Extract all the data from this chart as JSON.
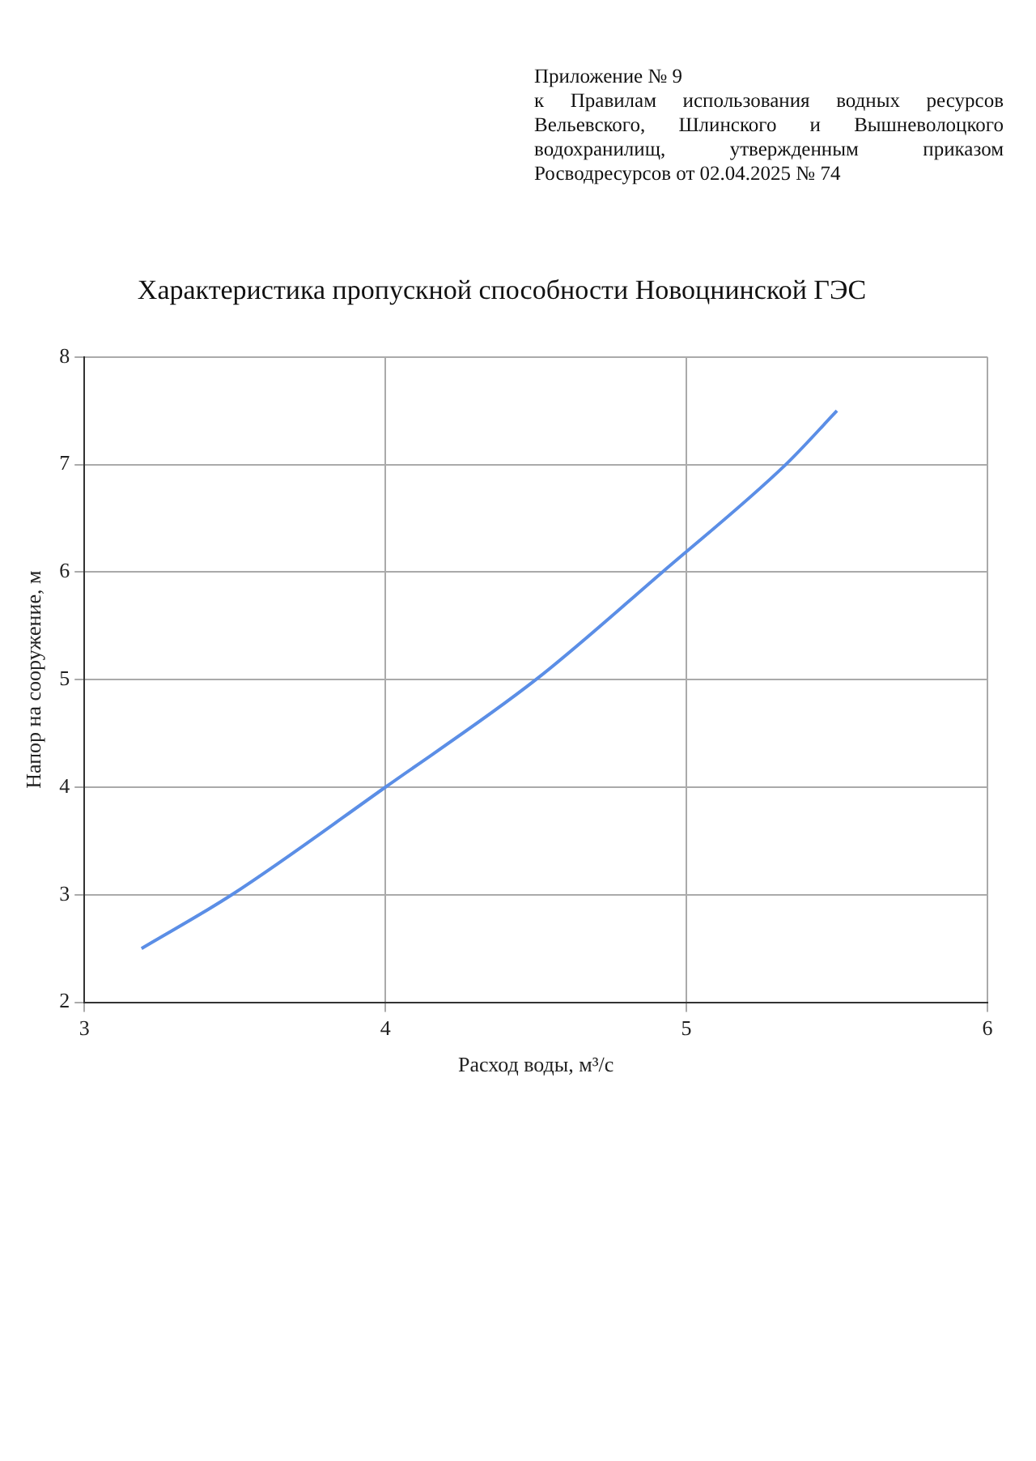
{
  "chart_data": {
    "type": "line",
    "title": "Характеристика пропускной способности Новоцнинской ГЭС",
    "xlabel": "Расход воды, м³/с",
    "ylabel": "Напор на сооружение, м",
    "annotations": [
      "Приложение № 9",
      "к Правилам использования водных ресурсов Вельевского, Шлинского и Вышневолоцкого водохранилищ, утвержденным приказом Росводресурсов от 02.04.2025 № 74"
    ],
    "x": [
      3.19,
      3.49,
      4,
      4.5,
      4.92,
      5.33,
      5.5
    ],
    "series": [
      {
        "color": "#5b8ee6",
        "values": [
          2.5,
          3,
          4,
          5,
          6,
          7,
          7.5
        ]
      }
    ],
    "xlim": [
      3,
      6
    ],
    "xticks": [
      3,
      4,
      5,
      6
    ],
    "ylim": [
      2,
      8
    ],
    "yticks": [
      2,
      3,
      4,
      5,
      6,
      7,
      8
    ],
    "grid": true,
    "legend": false,
    "marker": "none",
    "line_style": "solid"
  }
}
